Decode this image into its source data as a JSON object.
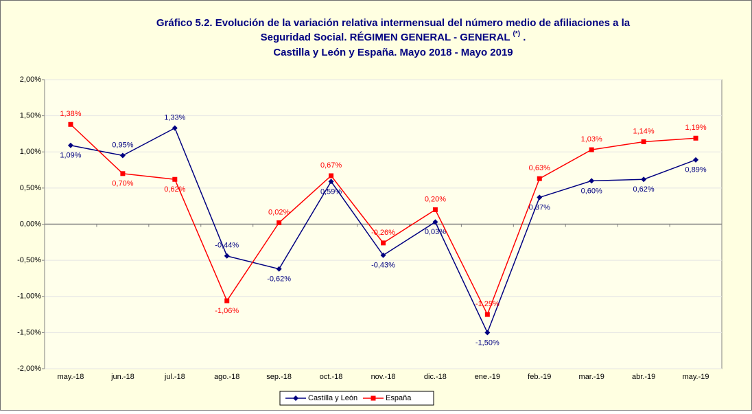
{
  "chart_data": {
    "type": "line",
    "title": [
      "Gráfico 5.2. Evolución de la variación relativa intermensual del número medio de afiliaciones a la",
      "Seguridad Social. RÉGIMEN GENERAL - GENERAL",
      "Castilla y León y España. Mayo 2018 - Mayo 2019"
    ],
    "title_superscript": "(*)",
    "title_end": ".",
    "categories": [
      "may.-18",
      "jun.-18",
      "jul.-18",
      "ago.-18",
      "sep.-18",
      "oct.-18",
      "nov.-18",
      "dic.-18",
      "ene.-19",
      "feb.-19",
      "mar.-19",
      "abr.-19",
      "may.-19"
    ],
    "series": [
      {
        "name": "Castilla y León",
        "color": "#000080",
        "marker": "diamond",
        "values": [
          1.09,
          0.95,
          1.33,
          -0.44,
          -0.62,
          0.59,
          -0.43,
          0.03,
          -1.5,
          0.37,
          0.6,
          0.62,
          0.89
        ],
        "value_labels": [
          "1,09%",
          "0,95%",
          "1,33%",
          "-0,44%",
          "-0,62%",
          "0,59%",
          "-0,43%",
          "0,03%",
          "-1,50%",
          "0,37%",
          "0,60%",
          "0,62%",
          "0,89%"
        ]
      },
      {
        "name": "España",
        "color": "#FF0000",
        "marker": "square",
        "values": [
          1.38,
          0.7,
          0.62,
          -1.06,
          0.02,
          0.67,
          -0.26,
          0.2,
          -1.25,
          0.63,
          1.03,
          1.14,
          1.19
        ],
        "value_labels": [
          "1,38%",
          "0,70%",
          "0,62%",
          "-1,06%",
          "0,02%",
          "0,67%",
          "-0,26%",
          "0,20%",
          "-1,25%",
          "0,63%",
          "1,03%",
          "1,14%",
          "1,19%"
        ]
      }
    ],
    "ylim": [
      -2,
      2
    ],
    "yticks": [
      {
        "value": -2,
        "label": "-2,00%"
      },
      {
        "value": -1.5,
        "label": "-1,50%"
      },
      {
        "value": -1,
        "label": "-1,00%"
      },
      {
        "value": -0.5,
        "label": "-0,50%"
      },
      {
        "value": 0,
        "label": "0,00%"
      },
      {
        "value": 0.5,
        "label": "0,50%"
      },
      {
        "value": 1,
        "label": "1,00%"
      },
      {
        "value": 1.5,
        "label": "1,50%"
      },
      {
        "value": 2,
        "label": "2,00%"
      }
    ],
    "grid": true,
    "legend": "bottom"
  }
}
